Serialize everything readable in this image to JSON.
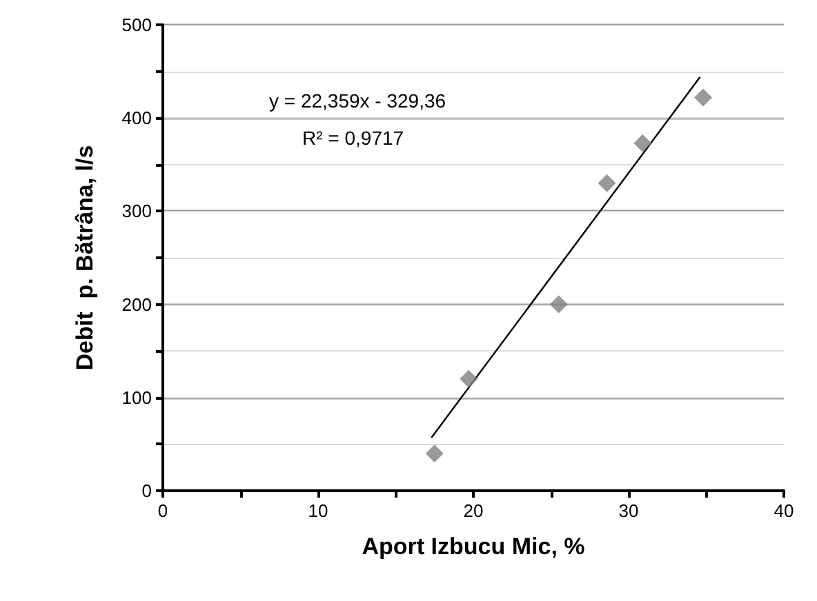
{
  "chart_data": {
    "type": "scatter",
    "xlabel": "Aport Izbucu Mic, %",
    "ylabel": "Debit  p. Bătrâna, l/s",
    "annotations": [
      "y = 22,359x - 329,36",
      "R² = 0,9717"
    ],
    "xlim": [
      0,
      40
    ],
    "ylim": [
      0,
      500
    ],
    "xticks": [
      0,
      {
        "value": 5,
        "label": null
      },
      10,
      {
        "value": 15,
        "label": null
      },
      20,
      {
        "value": 25,
        "label": null
      },
      30,
      {
        "value": 35,
        "label": null
      },
      40
    ],
    "yticks": [
      0,
      {
        "value": 50,
        "label": null
      },
      100,
      {
        "value": 150,
        "label": null
      },
      200,
      {
        "value": 250,
        "label": null
      },
      300,
      {
        "value": 350,
        "label": null
      },
      400,
      {
        "value": 450,
        "label": null
      },
      500
    ],
    "grid": "y",
    "marker": "diamond",
    "series": [
      {
        "color": "#7f7f7f",
        "x": [
          17.5,
          19.7,
          25.5,
          28.6,
          30.9,
          34.8
        ],
        "values": [
          40,
          120,
          200,
          330,
          373,
          422
        ]
      },
      {
        "type": "line",
        "color": "#000000",
        "x": [
          17.3,
          34.6
        ],
        "values": [
          57,
          444
        ],
        "marker": "none"
      }
    ]
  }
}
